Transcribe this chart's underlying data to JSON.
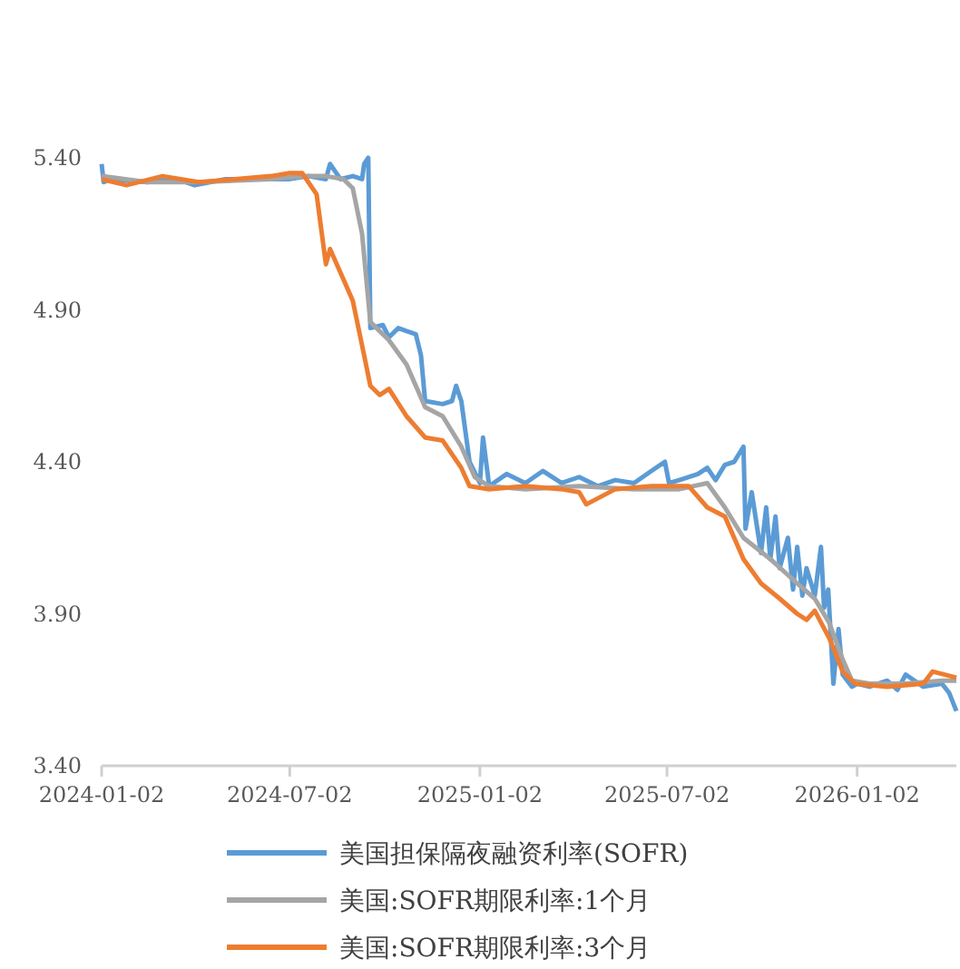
{
  "chart_data": {
    "type": "line",
    "xlim": [
      "2024-01-02",
      "2026-04-08"
    ],
    "ylim": [
      3.4,
      5.4
    ],
    "xticks": [
      "2024-01-02",
      "2024-07-02",
      "2025-01-02",
      "2025-07-02",
      "2026-01-02"
    ],
    "yticks": [
      {
        "value": 3.4,
        "label": "3.40"
      },
      {
        "value": 3.9,
        "label": "3.90"
      },
      {
        "value": 4.4,
        "label": "4.40"
      },
      {
        "value": 4.9,
        "label": "4.90"
      },
      {
        "value": 5.4,
        "label": "5.40"
      }
    ],
    "grid": false,
    "legend": "bottom",
    "line_style": "solid",
    "marker": "none",
    "series": [
      {
        "name": "美国担保隔夜融资利率(SOFR)",
        "color": "#5b9bd5",
        "x": [
          "2024-01-02",
          "2024-01-04",
          "2024-01-10",
          "2024-02-15",
          "2024-03-15",
          "2024-04-01",
          "2024-05-01",
          "2024-06-03",
          "2024-07-01",
          "2024-07-20",
          "2024-08-06",
          "2024-08-10",
          "2024-08-20",
          "2024-09-01",
          "2024-09-10",
          "2024-09-12",
          "2024-09-16",
          "2024-09-18",
          "2024-09-30",
          "2024-10-06",
          "2024-10-15",
          "2024-10-23",
          "2024-11-01",
          "2024-11-06",
          "2024-11-10",
          "2024-11-27",
          "2024-12-06",
          "2024-12-10",
          "2024-12-15",
          "2024-12-19",
          "2024-12-23",
          "2025-01-02",
          "2025-01-05",
          "2025-01-11",
          "2025-01-28",
          "2025-02-15",
          "2025-03-04",
          "2025-03-22",
          "2025-04-08",
          "2025-04-26",
          "2025-05-13",
          "2025-05-31",
          "2025-06-17",
          "2025-06-30",
          "2025-07-04",
          "2025-07-14",
          "2025-08-01",
          "2025-08-10",
          "2025-08-18",
          "2025-08-27",
          "2025-09-05",
          "2025-09-14",
          "2025-09-16",
          "2025-09-22",
          "2025-10-01",
          "2025-10-06",
          "2025-10-10",
          "2025-10-15",
          "2025-10-19",
          "2025-10-27",
          "2025-11-01",
          "2025-11-05",
          "2025-11-10",
          "2025-11-14",
          "2025-11-22",
          "2025-11-28",
          "2025-12-01",
          "2025-12-05",
          "2025-12-10",
          "2025-12-15",
          "2025-12-19",
          "2025-12-28",
          "2026-01-02",
          "2026-01-14",
          "2026-01-31",
          "2026-02-10",
          "2026-02-18",
          "2026-03-07",
          "2026-03-25",
          "2026-04-01",
          "2026-04-08"
        ],
        "values": [
          5.38,
          5.32,
          5.33,
          5.32,
          5.33,
          5.31,
          5.33,
          5.33,
          5.33,
          5.34,
          5.33,
          5.38,
          5.33,
          5.34,
          5.33,
          5.38,
          5.4,
          4.84,
          4.85,
          4.81,
          4.84,
          4.83,
          4.82,
          4.75,
          4.6,
          4.59,
          4.6,
          4.65,
          4.6,
          4.5,
          4.4,
          4.33,
          4.48,
          4.32,
          4.36,
          4.33,
          4.37,
          4.33,
          4.35,
          4.32,
          4.34,
          4.33,
          4.37,
          4.4,
          4.33,
          4.34,
          4.36,
          4.38,
          4.34,
          4.39,
          4.4,
          4.45,
          4.18,
          4.3,
          4.1,
          4.25,
          4.08,
          4.22,
          4.05,
          4.15,
          3.98,
          4.12,
          3.96,
          4.05,
          3.96,
          4.12,
          3.92,
          3.98,
          3.67,
          3.85,
          3.7,
          3.66,
          3.67,
          3.66,
          3.68,
          3.65,
          3.7,
          3.66,
          3.67,
          3.64,
          3.58
        ]
      },
      {
        "name": "美国:SOFR期限利率:1个月",
        "color": "#a5a5a5",
        "x": [
          "2024-01-02",
          "2024-02-15",
          "2024-04-05",
          "2024-06-14",
          "2024-07-19",
          "2024-08-06",
          "2024-08-23",
          "2024-09-01",
          "2024-09-10",
          "2024-09-18",
          "2024-10-06",
          "2024-10-23",
          "2024-11-10",
          "2024-11-27",
          "2024-12-15",
          "2024-12-28",
          "2025-01-11",
          "2025-02-15",
          "2025-04-08",
          "2025-05-31",
          "2025-07-14",
          "2025-08-10",
          "2025-08-27",
          "2025-09-14",
          "2025-10-10",
          "2025-11-05",
          "2025-11-22",
          "2025-12-06",
          "2025-12-19",
          "2025-12-28",
          "2026-01-14",
          "2026-02-18",
          "2026-03-25",
          "2026-04-08"
        ],
        "values": [
          5.34,
          5.32,
          5.32,
          5.33,
          5.34,
          5.34,
          5.33,
          5.3,
          5.15,
          4.86,
          4.8,
          4.72,
          4.58,
          4.55,
          4.45,
          4.35,
          4.32,
          4.31,
          4.32,
          4.31,
          4.31,
          4.33,
          4.25,
          4.15,
          4.08,
          4.0,
          3.95,
          3.87,
          3.75,
          3.68,
          3.67,
          3.67,
          3.68,
          3.68
        ]
      },
      {
        "name": "美国:SOFR期限利率:3个月",
        "color": "#ed7d31",
        "x": [
          "2024-01-02",
          "2024-01-26",
          "2024-03-01",
          "2024-04-05",
          "2024-05-10",
          "2024-06-14",
          "2024-07-02",
          "2024-07-14",
          "2024-07-28",
          "2024-08-06",
          "2024-08-10",
          "2024-08-23",
          "2024-09-01",
          "2024-09-12",
          "2024-09-18",
          "2024-09-27",
          "2024-10-06",
          "2024-10-23",
          "2024-11-10",
          "2024-11-27",
          "2024-12-15",
          "2024-12-23",
          "2025-01-11",
          "2025-02-15",
          "2025-03-22",
          "2025-04-08",
          "2025-04-15",
          "2025-05-13",
          "2025-06-17",
          "2025-07-23",
          "2025-08-10",
          "2025-08-27",
          "2025-09-14",
          "2025-10-01",
          "2025-10-19",
          "2025-11-05",
          "2025-11-14",
          "2025-11-22",
          "2025-12-06",
          "2025-12-19",
          "2025-12-31",
          "2026-01-31",
          "2026-03-07",
          "2026-03-16",
          "2026-04-08"
        ],
        "values": [
          5.33,
          5.31,
          5.34,
          5.32,
          5.33,
          5.34,
          5.35,
          5.35,
          5.28,
          5.05,
          5.1,
          5.0,
          4.93,
          4.75,
          4.65,
          4.62,
          4.64,
          4.55,
          4.48,
          4.47,
          4.38,
          4.32,
          4.31,
          4.32,
          4.31,
          4.3,
          4.26,
          4.31,
          4.32,
          4.32,
          4.25,
          4.22,
          4.08,
          4.0,
          3.95,
          3.9,
          3.88,
          3.91,
          3.82,
          3.71,
          3.67,
          3.66,
          3.67,
          3.71,
          3.69
        ]
      }
    ]
  }
}
